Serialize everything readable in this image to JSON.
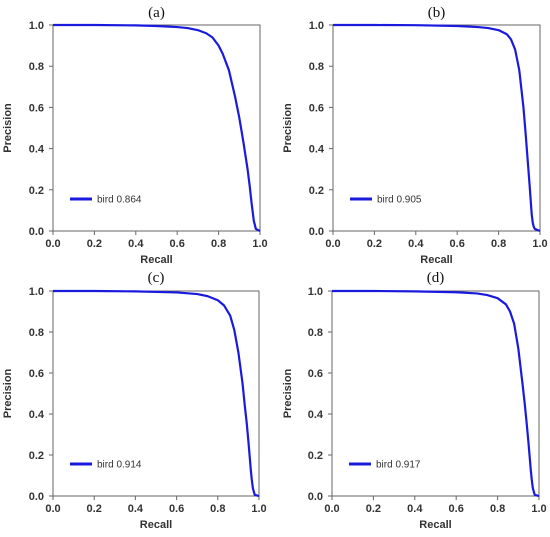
{
  "chart_data": [
    {
      "type": "line",
      "title": "(a)",
      "xlabel": "Recall",
      "ylabel": "Precision",
      "xlim": [
        0,
        1
      ],
      "ylim": [
        0,
        1
      ],
      "xticks": [
        "0.0",
        "0.2",
        "0.4",
        "0.6",
        "0.8",
        "1.0"
      ],
      "yticks": [
        "0.0",
        "0.2",
        "0.4",
        "0.6",
        "0.8",
        "1.0"
      ],
      "legend_position": "bottom-left",
      "grid": false,
      "series": [
        {
          "name": "bird 0.864",
          "color": "#1a1adf",
          "x": [
            0,
            0.2,
            0.4,
            0.5,
            0.6,
            0.65,
            0.7,
            0.74,
            0.77,
            0.8,
            0.82,
            0.85,
            0.88,
            0.9,
            0.92,
            0.94,
            0.95,
            0.96,
            0.97,
            0.98,
            1.0
          ],
          "y": [
            1.0,
            1.0,
            0.998,
            0.995,
            0.99,
            0.985,
            0.975,
            0.96,
            0.94,
            0.9,
            0.86,
            0.78,
            0.65,
            0.55,
            0.43,
            0.3,
            0.22,
            0.13,
            0.05,
            0.01,
            0.0
          ]
        }
      ]
    },
    {
      "type": "line",
      "title": "(b)",
      "xlabel": "Recall",
      "ylabel": "Precision",
      "xlim": [
        0,
        1
      ],
      "ylim": [
        0,
        1
      ],
      "xticks": [
        "0.0",
        "0.2",
        "0.4",
        "0.6",
        "0.8",
        "1.0"
      ],
      "yticks": [
        "0.0",
        "0.2",
        "0.4",
        "0.6",
        "0.8",
        "1.0"
      ],
      "legend_position": "bottom-left",
      "grid": false,
      "series": [
        {
          "name": "bird 0.905",
          "color": "#1a1adf",
          "x": [
            0,
            0.2,
            0.4,
            0.6,
            0.7,
            0.75,
            0.8,
            0.84,
            0.86,
            0.88,
            0.9,
            0.92,
            0.93,
            0.94,
            0.95,
            0.955,
            0.96,
            0.965,
            0.97,
            0.975,
            1.0
          ],
          "y": [
            1.0,
            1.0,
            0.999,
            0.995,
            0.99,
            0.985,
            0.975,
            0.955,
            0.93,
            0.88,
            0.78,
            0.6,
            0.48,
            0.35,
            0.22,
            0.15,
            0.08,
            0.04,
            0.02,
            0.01,
            0.0
          ]
        }
      ]
    },
    {
      "type": "line",
      "title": "(c)",
      "xlabel": "Recall",
      "ylabel": "Precision",
      "xlim": [
        0,
        1
      ],
      "ylim": [
        0,
        1
      ],
      "xticks": [
        "0.0",
        "0.2",
        "0.4",
        "0.6",
        "0.8",
        "1.0"
      ],
      "yticks": [
        "0.0",
        "0.2",
        "0.4",
        "0.6",
        "0.8",
        "1.0"
      ],
      "legend_position": "bottom-left",
      "grid": false,
      "series": [
        {
          "name": "bird 0.914",
          "color": "#1a1adf",
          "x": [
            0,
            0.2,
            0.4,
            0.6,
            0.7,
            0.75,
            0.8,
            0.83,
            0.86,
            0.88,
            0.9,
            0.92,
            0.93,
            0.94,
            0.95,
            0.96,
            0.965,
            0.97,
            0.975,
            0.98,
            1.0
          ],
          "y": [
            1.0,
            1.0,
            0.998,
            0.993,
            0.985,
            0.975,
            0.955,
            0.93,
            0.88,
            0.81,
            0.7,
            0.55,
            0.45,
            0.36,
            0.25,
            0.13,
            0.08,
            0.04,
            0.02,
            0.005,
            0.0
          ]
        }
      ]
    },
    {
      "type": "line",
      "title": "(d)",
      "xlabel": "Recall",
      "ylabel": "Precision",
      "xlim": [
        0,
        1
      ],
      "ylim": [
        0,
        1
      ],
      "xticks": [
        "0.0",
        "0.2",
        "0.4",
        "0.6",
        "0.8",
        "1.0"
      ],
      "yticks": [
        "0.0",
        "0.2",
        "0.4",
        "0.6",
        "0.8",
        "1.0"
      ],
      "legend_position": "bottom-left",
      "grid": false,
      "series": [
        {
          "name": "bird 0.917",
          "color": "#1a1adf",
          "x": [
            0,
            0.2,
            0.4,
            0.6,
            0.7,
            0.75,
            0.8,
            0.84,
            0.86,
            0.88,
            0.9,
            0.92,
            0.93,
            0.94,
            0.95,
            0.96,
            0.965,
            0.97,
            0.975,
            0.98,
            1.0
          ],
          "y": [
            1.0,
            1.0,
            0.998,
            0.994,
            0.988,
            0.98,
            0.965,
            0.935,
            0.9,
            0.84,
            0.72,
            0.55,
            0.46,
            0.36,
            0.25,
            0.13,
            0.08,
            0.04,
            0.02,
            0.005,
            0.0
          ]
        }
      ]
    }
  ]
}
